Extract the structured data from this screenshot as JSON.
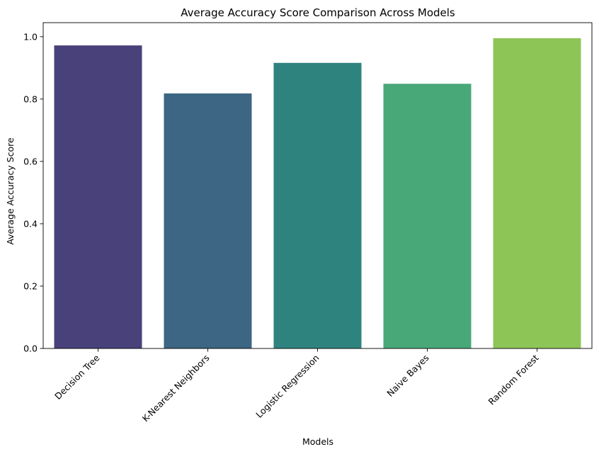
{
  "chart_data": {
    "type": "bar",
    "title": "Average Accuracy Score Comparison Across Models",
    "xlabel": "Models",
    "ylabel": "Average Accuracy Score",
    "categories": [
      "Decision Tree",
      "K-Nearest Neighbors",
      "Logistic Regression",
      "Naive Bayes",
      "Random Forest"
    ],
    "values": [
      0.972,
      0.818,
      0.916,
      0.849,
      0.995
    ],
    "colors": [
      "#48417a",
      "#3c6683",
      "#2e837f",
      "#48a878",
      "#8ec557"
    ],
    "ylim": [
      0,
      1.045
    ],
    "yticks": [
      0.0,
      0.2,
      0.4,
      0.6,
      0.8,
      1.0
    ],
    "ytick_labels": [
      "0.0",
      "0.2",
      "0.4",
      "0.6",
      "0.8",
      "1.0"
    ],
    "grid": false,
    "legend": "none"
  }
}
